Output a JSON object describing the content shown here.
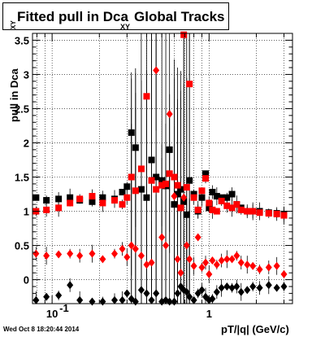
{
  "title": {
    "main": "Fitted pull in Dca",
    "sub": "XY",
    "tail": "Global Tracks"
  },
  "footer": {
    "timestamp": "Wed Oct  8 18:20:44 2014"
  },
  "chart_data": {
    "type": "scatter",
    "title": "Fitted pull in Dca XY Global Tracks",
    "xlabel": "pT/|q| (GeV/c)",
    "ylabel": "pull in Dca XY",
    "x_scale": "log",
    "xlim": [
      0.075,
      3.4
    ],
    "ylim": [
      -0.35,
      3.6
    ],
    "grid": true,
    "x_tick_labels": [
      {
        "v": 0.1,
        "t": "10"
      },
      {
        "v": 1,
        "t": "1"
      }
    ],
    "y_tick_labels": [
      "0",
      "0.5",
      "1",
      "1.5",
      "2",
      "2.5",
      "3",
      "3.5"
    ],
    "series": [
      {
        "color": "#000000",
        "marker": "square",
        "points": [
          [
            0.079,
            1.2
          ],
          [
            0.092,
            1.16
          ],
          [
            0.11,
            1.18
          ],
          [
            0.13,
            1.2
          ],
          [
            0.15,
            1.16
          ],
          [
            0.18,
            1.14
          ],
          [
            0.21,
            1.2
          ],
          [
            0.25,
            1.18
          ],
          [
            0.28,
            1.28
          ],
          [
            0.3,
            1.36
          ],
          [
            0.32,
            2.15
          ],
          [
            0.34,
            1.93
          ],
          [
            0.37,
            1.32
          ],
          [
            0.4,
            1.2
          ],
          [
            0.43,
            1.75
          ],
          [
            0.46,
            1.5
          ],
          [
            0.5,
            1.45
          ],
          [
            0.53,
            1.37
          ],
          [
            0.56,
            1.9
          ],
          [
            0.6,
            1.1
          ],
          [
            0.63,
            1.25
          ],
          [
            0.66,
            1.32
          ],
          [
            0.69,
            1.14
          ],
          [
            0.72,
            0.95
          ],
          [
            0.75,
            1.45
          ],
          [
            0.8,
            1.25
          ],
          [
            0.85,
            1.0
          ],
          [
            0.9,
            1.2
          ],
          [
            0.95,
            1.55
          ],
          [
            1.0,
            1.05
          ],
          [
            1.05,
            1.28
          ],
          [
            1.12,
            1.22
          ],
          [
            1.2,
            1.2
          ],
          [
            1.3,
            1.2
          ],
          [
            1.4,
            1.25
          ],
          [
            1.5,
            1.1
          ],
          [
            1.6,
            1.05
          ],
          [
            1.75,
            1.0
          ],
          [
            1.9,
            1.0
          ],
          [
            2.1,
            1.0
          ],
          [
            2.4,
            0.98
          ],
          [
            2.7,
            0.97
          ],
          [
            3.0,
            0.96
          ]
        ]
      },
      {
        "color": "#ff0000",
        "marker": "square",
        "points": [
          [
            0.079,
            1.0
          ],
          [
            0.092,
            1.02
          ],
          [
            0.11,
            1.05
          ],
          [
            0.13,
            1.12
          ],
          [
            0.15,
            1.18
          ],
          [
            0.18,
            1.22
          ],
          [
            0.21,
            1.12
          ],
          [
            0.25,
            1.16
          ],
          [
            0.28,
            1.1
          ],
          [
            0.3,
            1.2
          ],
          [
            0.32,
            1.5
          ],
          [
            0.34,
            1.3
          ],
          [
            0.37,
            1.62
          ],
          [
            0.4,
            2.68
          ],
          [
            0.43,
            1.45
          ],
          [
            0.46,
            1.32
          ],
          [
            0.5,
            1.38
          ],
          [
            0.53,
            1.4
          ],
          [
            0.56,
            1.55
          ],
          [
            0.6,
            1.5
          ],
          [
            0.63,
            1.38
          ],
          [
            0.66,
            1.05
          ],
          [
            0.69,
            3.58
          ],
          [
            0.72,
            1.35
          ],
          [
            0.75,
            2.86
          ],
          [
            0.8,
            1.2
          ],
          [
            0.85,
            1.02
          ],
          [
            0.9,
            1.3
          ],
          [
            0.95,
            1.48
          ],
          [
            1.0,
            1.12
          ],
          [
            1.05,
            1.02
          ],
          [
            1.12,
            1.0
          ],
          [
            1.2,
            1.15
          ],
          [
            1.3,
            1.08
          ],
          [
            1.4,
            1.05
          ],
          [
            1.5,
            1.1
          ],
          [
            1.6,
            1.02
          ],
          [
            1.75,
            1.0
          ],
          [
            1.9,
            1.0
          ],
          [
            2.1,
            0.98
          ],
          [
            2.4,
            0.97
          ],
          [
            2.7,
            0.96
          ],
          [
            3.0,
            0.94
          ]
        ]
      },
      {
        "color": "#ff0000",
        "marker": "diamond",
        "points": [
          [
            0.079,
            0.38
          ],
          [
            0.092,
            0.35
          ],
          [
            0.11,
            0.37
          ],
          [
            0.13,
            0.38
          ],
          [
            0.15,
            0.35
          ],
          [
            0.18,
            0.38
          ],
          [
            0.21,
            0.3
          ],
          [
            0.25,
            0.38
          ],
          [
            0.28,
            0.45
          ],
          [
            0.3,
            0.33
          ],
          [
            0.32,
            0.5
          ],
          [
            0.34,
            0.45
          ],
          [
            0.37,
            0.35
          ],
          [
            0.4,
            0.22
          ],
          [
            0.43,
            0.25
          ],
          [
            0.46,
            3.06
          ],
          [
            0.5,
            0.62
          ],
          [
            0.53,
            0.5
          ],
          [
            0.56,
            2.42
          ],
          [
            0.6,
            1.22
          ],
          [
            0.63,
            0.3
          ],
          [
            0.66,
            0.1
          ],
          [
            0.69,
            1.2
          ],
          [
            0.72,
            0.5
          ],
          [
            0.75,
            0.3
          ],
          [
            0.8,
            0.2
          ],
          [
            0.85,
            0.62
          ],
          [
            0.9,
            0.18
          ],
          [
            0.95,
            0.25
          ],
          [
            1.0,
            0.08
          ],
          [
            1.05,
            0.28
          ],
          [
            1.12,
            0.22
          ],
          [
            1.2,
            0.28
          ],
          [
            1.3,
            0.3
          ],
          [
            1.4,
            0.3
          ],
          [
            1.5,
            0.35
          ],
          [
            1.6,
            0.25
          ],
          [
            1.75,
            0.22
          ],
          [
            1.9,
            0.2
          ],
          [
            2.1,
            0.15
          ],
          [
            2.4,
            0.18
          ],
          [
            2.7,
            0.2
          ],
          [
            3.0,
            0.08
          ]
        ]
      },
      {
        "color": "#000000",
        "marker": "diamond",
        "points": [
          [
            0.079,
            -0.3
          ],
          [
            0.092,
            -0.25
          ],
          [
            0.11,
            -0.23
          ],
          [
            0.13,
            -0.08
          ],
          [
            0.15,
            -0.3
          ],
          [
            0.18,
            -0.32
          ],
          [
            0.21,
            -0.32
          ],
          [
            0.25,
            -0.3
          ],
          [
            0.28,
            -0.3
          ],
          [
            0.3,
            -0.2
          ],
          [
            0.32,
            -0.28
          ],
          [
            0.34,
            -0.32
          ],
          [
            0.37,
            -0.15
          ],
          [
            0.4,
            -0.2
          ],
          [
            0.43,
            -0.3
          ],
          [
            0.46,
            -0.2
          ],
          [
            0.5,
            -0.32
          ],
          [
            0.53,
            -0.3
          ],
          [
            0.56,
            -0.32
          ],
          [
            0.6,
            -0.32
          ],
          [
            0.63,
            -0.2
          ],
          [
            0.66,
            -0.1
          ],
          [
            0.69,
            -0.15
          ],
          [
            0.72,
            -0.18
          ],
          [
            0.75,
            -0.25
          ],
          [
            0.8,
            -0.3
          ],
          [
            0.85,
            -0.2
          ],
          [
            0.9,
            -0.15
          ],
          [
            0.95,
            -0.25
          ],
          [
            1.0,
            -0.3
          ],
          [
            1.05,
            -0.28
          ],
          [
            1.12,
            -0.18
          ],
          [
            1.2,
            -0.12
          ],
          [
            1.3,
            -0.1
          ],
          [
            1.4,
            -0.12
          ],
          [
            1.5,
            -0.1
          ],
          [
            1.6,
            -0.18
          ],
          [
            1.75,
            -0.15
          ],
          [
            1.9,
            -0.1
          ],
          [
            2.1,
            -0.12
          ],
          [
            2.4,
            -0.08
          ],
          [
            2.7,
            -0.12
          ],
          [
            3.0,
            -0.1
          ]
        ]
      }
    ]
  }
}
